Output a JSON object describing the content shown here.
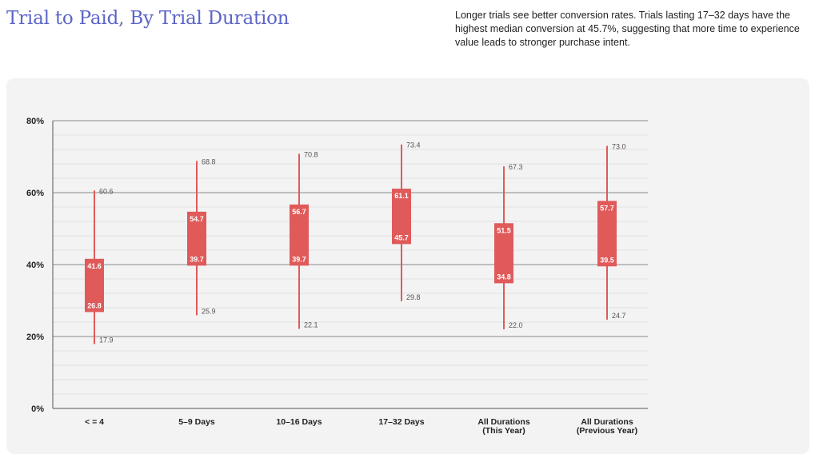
{
  "header": {
    "title": "Trial to Paid, By Trial Duration",
    "description": "Longer trials see better conversion rates. Trials lasting 17–32 days have the highest median conversion at 45.7%, suggesting that more time to experience value leads to stronger purchase intent."
  },
  "colors": {
    "title": "#5b64c8",
    "box": "#e05a5a",
    "whisker": "#e05a5a",
    "panel": "#f3f3f3",
    "major_grid": "#8a8a8a",
    "minor_grid": "#dcdcdc"
  },
  "chart_data": {
    "type": "boxplot",
    "title": "Trial to Paid, By Trial Duration",
    "xlabel": "",
    "ylabel": "",
    "ylim": [
      0,
      80
    ],
    "y_ticks": [
      "0%",
      "20%",
      "40%",
      "60%",
      "80%"
    ],
    "y_tick_values": [
      0,
      20,
      40,
      60,
      80
    ],
    "grid": true,
    "categories": [
      {
        "label": [
          "< = 4"
        ],
        "min": 17.9,
        "q1": 26.8,
        "q3": 41.6,
        "max": 60.6,
        "min_label": "17.9",
        "q1_label": "26.8",
        "q3_label": "41.6",
        "max_label": "60.6"
      },
      {
        "label": [
          "5–9 Days"
        ],
        "min": 25.9,
        "q1": 39.7,
        "q3": 54.7,
        "max": 68.8,
        "min_label": "25.9",
        "q1_label": "39.7",
        "q3_label": "54.7",
        "max_label": "68.8"
      },
      {
        "label": [
          "10–16 Days"
        ],
        "min": 22.1,
        "q1": 39.7,
        "q3": 56.7,
        "max": 70.8,
        "min_label": "22.1",
        "q1_label": "39.7",
        "q3_label": "56.7",
        "max_label": "70.8"
      },
      {
        "label": [
          "17–32 Days"
        ],
        "min": 29.8,
        "q1": 45.7,
        "q3": 61.1,
        "max": 73.4,
        "min_label": "29.8",
        "q1_label": "45.7",
        "q3_label": "61.1",
        "max_label": "73.4"
      },
      {
        "label": [
          "All Durations",
          "(This Year)"
        ],
        "min": 22.0,
        "q1": 34.8,
        "q3": 51.5,
        "max": 67.3,
        "min_label": "22.0",
        "q1_label": "34.8",
        "q3_label": "51.5",
        "max_label": "67.3"
      },
      {
        "label": [
          "All Durations",
          "(Previous Year)"
        ],
        "min": 24.7,
        "q1": 39.5,
        "q3": 57.7,
        "max": 73.0,
        "min_label": "24.7",
        "q1_label": "39.5",
        "q3_label": "57.7",
        "max_label": "73.0"
      }
    ]
  }
}
